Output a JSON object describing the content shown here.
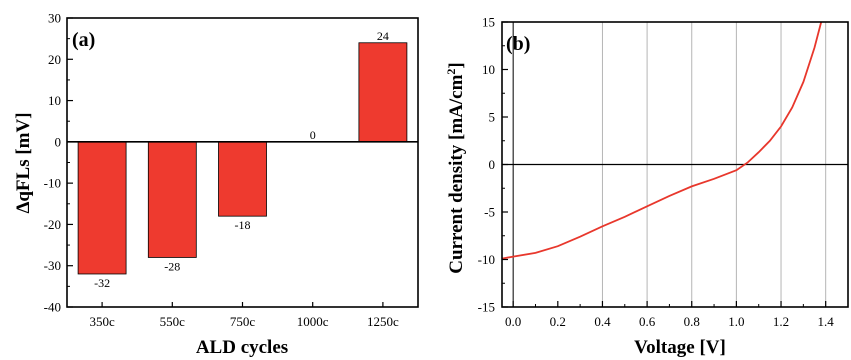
{
  "chart_data": [
    {
      "type": "bar",
      "panel_label": "(a)",
      "categories": [
        "350c",
        "550c",
        "750c",
        "1000c",
        "1250c"
      ],
      "values": [
        -32,
        -28,
        -18,
        0,
        24
      ],
      "data_labels": [
        "-32",
        "-28",
        "-18",
        "0",
        "24"
      ],
      "xlabel": "ALD cycles",
      "ylabel": "ΔqFLs [mV]",
      "ylim": [
        -40,
        30
      ],
      "yticks": [
        -40,
        -30,
        -20,
        -10,
        0,
        10,
        20,
        30
      ],
      "ytick_labels": [
        "-40",
        "-30",
        "-20",
        "-10",
        "0",
        "10",
        "20",
        "30"
      ],
      "bar_color": "#ee3a2f",
      "grid": false
    },
    {
      "type": "line",
      "panel_label": "(b)",
      "xlabel": "Voltage [V]",
      "ylabel_main": "Current density [mA/cm",
      "ylabel_sup": "2",
      "ylabel_end": "]",
      "xlim": [
        -0.05,
        1.5
      ],
      "ylim": [
        -15,
        15
      ],
      "xticks": [
        0.0,
        0.2,
        0.4,
        0.6,
        0.8,
        1.0,
        1.2,
        1.4
      ],
      "xtick_labels": [
        "0.0",
        "0.2",
        "0.4",
        "0.6",
        "0.8",
        "1.0",
        "1.2",
        "1.4"
      ],
      "yticks": [
        -15,
        -10,
        -5,
        0,
        5,
        10,
        15
      ],
      "ytick_labels": [
        "-15",
        "-10",
        "-5",
        "0",
        "5",
        "10",
        "15"
      ],
      "vertical_gridlines": [
        0.4,
        0.6,
        0.8,
        1.0,
        1.2,
        1.4
      ],
      "line_color": "#e8372c",
      "series": [
        {
          "x": [
            -0.05,
            0.0,
            0.1,
            0.2,
            0.3,
            0.4,
            0.5,
            0.6,
            0.7,
            0.8,
            0.9,
            1.0,
            1.05,
            1.1,
            1.15,
            1.2,
            1.25,
            1.3,
            1.35,
            1.38
          ],
          "y": [
            -9.9,
            -9.7,
            -9.3,
            -8.6,
            -7.6,
            -6.5,
            -5.5,
            -4.4,
            -3.3,
            -2.3,
            -1.5,
            -0.6,
            0.2,
            1.3,
            2.5,
            4.0,
            6.0,
            8.7,
            12.3,
            15.0
          ]
        }
      ]
    }
  ]
}
